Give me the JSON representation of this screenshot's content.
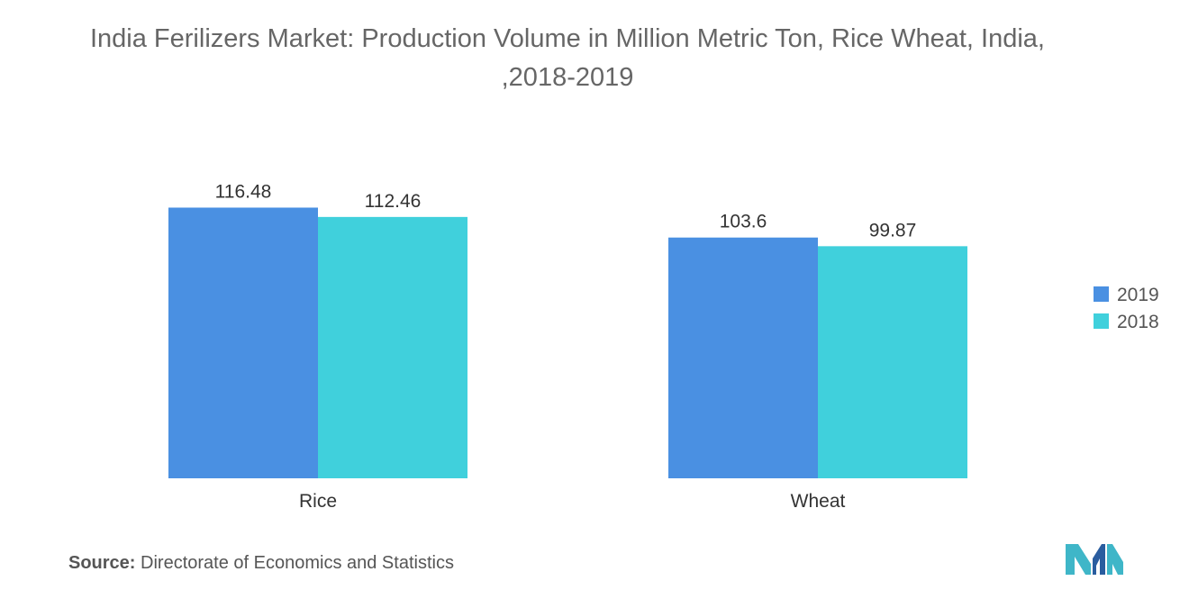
{
  "chart_data": {
    "type": "bar",
    "title": "India Ferilizers Market: Production Volume in Million Metric Ton, Rice Wheat, India, ,2018-2019",
    "categories": [
      "Rice",
      "Wheat"
    ],
    "series": [
      {
        "name": "2019",
        "values": [
          116.48,
          103.6
        ],
        "labels": [
          "116.48",
          "103.6"
        ],
        "color": "#4a90e2"
      },
      {
        "name": "2018",
        "values": [
          112.46,
          99.87
        ],
        "labels": [
          "112.46",
          "99.87"
        ],
        "color": "#40d0dc"
      }
    ],
    "ylim": [
      0,
      120
    ],
    "grid": false,
    "legend": "right"
  },
  "source": {
    "label": "Source:",
    "text": "Directorate of Economics and Statistics"
  },
  "logo": {
    "icon": "mordor-intelligence-logo-icon",
    "color": "#3fb6c8"
  }
}
